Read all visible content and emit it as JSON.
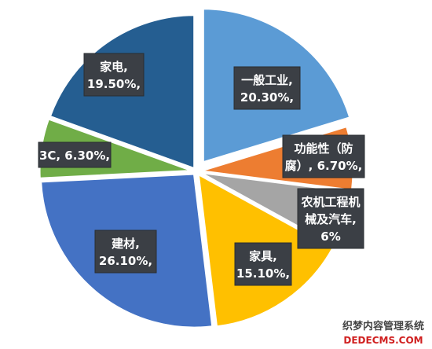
{
  "chart_data": {
    "type": "pie",
    "title": "",
    "slices": [
      {
        "label_lines": [
          "一般工业,",
          "20.30%,"
        ],
        "value": 20.3,
        "color": "#5b9bd5"
      },
      {
        "label_lines": [
          "功能性（防",
          "腐）, 6.70%,"
        ],
        "value": 6.7,
        "color": "#ed7d31"
      },
      {
        "label_lines": [
          "农机工程机",
          "械及汽车,",
          "6%"
        ],
        "value": 6.0,
        "color": "#a5a5a5"
      },
      {
        "label_lines": [
          "家具,",
          "15.10%,"
        ],
        "value": 15.1,
        "color": "#ffc000"
      },
      {
        "label_lines": [
          "建材,",
          "26.10%,"
        ],
        "value": 26.1,
        "color": "#4472c4"
      },
      {
        "label_lines": [
          "3C, 6.30%,"
        ],
        "value": 6.3,
        "color": "#70ad47"
      },
      {
        "label_lines": [
          "家电,",
          "19.50%,"
        ],
        "value": 19.5,
        "color": "#255e91"
      }
    ]
  },
  "watermark": {
    "line1": "织梦内容管理系统",
    "line2": "DEDECMS.COM"
  }
}
